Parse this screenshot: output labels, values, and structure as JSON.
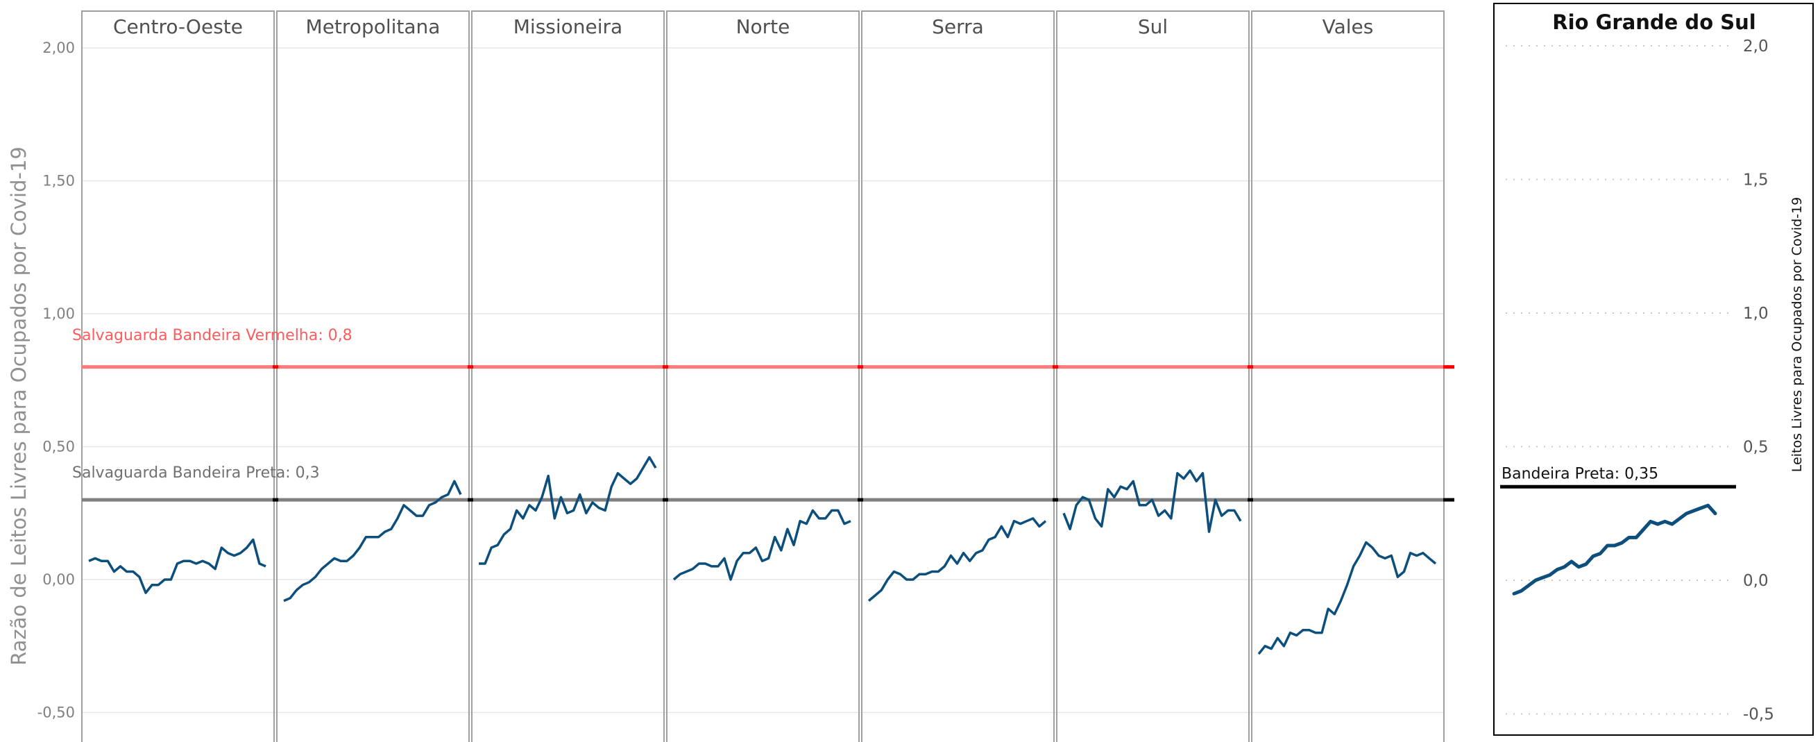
{
  "colors": {
    "series": "#0d4f7c",
    "red_line": "#ff7b7b",
    "red_marker": "#ff0000",
    "black_line": "#808080",
    "black_marker": "#000000",
    "grid": "#e6e6e6",
    "panel_border": "#a0a0a0"
  },
  "chart_data": [
    {
      "type": "line",
      "ylabel": "Razão de Leitos Livres para Ocupados por Covid-19",
      "ylim": [
        -0.5,
        2.0
      ],
      "yticks": [
        "2,00",
        "1,50",
        "1,00",
        "0,50",
        "0,00",
        "-0,50"
      ],
      "ytick_values": [
        2.0,
        1.5,
        1.0,
        0.5,
        0.0,
        -0.5
      ],
      "grid": true,
      "reference_lines": [
        {
          "label": "Salvaguarda Bandeira Vermelha: 0,8",
          "value": 0.8,
          "color": "#ff7b7b"
        },
        {
          "label": "Salvaguarda Bandeira Preta: 0,3",
          "value": 0.3,
          "color": "#808080"
        }
      ],
      "panels": [
        {
          "name": "Centro-Oeste",
          "values": [
            0.07,
            0.08,
            0.07,
            0.07,
            0.03,
            0.05,
            0.03,
            0.03,
            0.01,
            -0.05,
            -0.02,
            -0.02,
            0.0,
            0.0,
            0.06,
            0.07,
            0.07,
            0.06,
            0.07,
            0.06,
            0.04,
            0.12,
            0.1,
            0.09,
            0.1,
            0.12,
            0.15,
            0.06,
            0.05
          ]
        },
        {
          "name": "Metropolitana",
          "values": [
            -0.08,
            -0.07,
            -0.04,
            -0.02,
            -0.01,
            0.01,
            0.04,
            0.06,
            0.08,
            0.07,
            0.07,
            0.09,
            0.12,
            0.16,
            0.16,
            0.16,
            0.18,
            0.19,
            0.23,
            0.28,
            0.26,
            0.24,
            0.24,
            0.28,
            0.29,
            0.31,
            0.32,
            0.37,
            0.32
          ]
        },
        {
          "name": "Missioneira",
          "values": [
            0.06,
            0.06,
            0.12,
            0.13,
            0.17,
            0.19,
            0.26,
            0.23,
            0.28,
            0.26,
            0.31,
            0.39,
            0.23,
            0.31,
            0.25,
            0.26,
            0.32,
            0.25,
            0.29,
            0.27,
            0.26,
            0.35,
            0.4,
            0.38,
            0.36,
            0.38,
            0.42,
            0.46,
            0.42
          ]
        },
        {
          "name": "Norte",
          "values": [
            0.0,
            0.02,
            0.03,
            0.04,
            0.06,
            0.06,
            0.05,
            0.05,
            0.08,
            0.0,
            0.07,
            0.1,
            0.1,
            0.12,
            0.07,
            0.08,
            0.16,
            0.11,
            0.19,
            0.13,
            0.22,
            0.21,
            0.26,
            0.23,
            0.23,
            0.26,
            0.26,
            0.21,
            0.22
          ]
        },
        {
          "name": "Serra",
          "values": [
            -0.08,
            -0.06,
            -0.04,
            0.0,
            0.03,
            0.02,
            0.0,
            0.0,
            0.02,
            0.02,
            0.03,
            0.03,
            0.05,
            0.09,
            0.06,
            0.1,
            0.07,
            0.1,
            0.11,
            0.15,
            0.16,
            0.2,
            0.16,
            0.22,
            0.21,
            0.22,
            0.23,
            0.2,
            0.22
          ]
        },
        {
          "name": "Sul",
          "values": [
            0.25,
            0.19,
            0.28,
            0.31,
            0.3,
            0.23,
            0.2,
            0.34,
            0.31,
            0.35,
            0.34,
            0.37,
            0.28,
            0.28,
            0.3,
            0.24,
            0.26,
            0.23,
            0.4,
            0.38,
            0.41,
            0.37,
            0.4,
            0.18,
            0.3,
            0.24,
            0.26,
            0.26,
            0.22
          ]
        },
        {
          "name": "Vales",
          "values": [
            -0.28,
            -0.25,
            -0.26,
            -0.22,
            -0.25,
            -0.2,
            -0.21,
            -0.19,
            -0.19,
            -0.2,
            -0.2,
            -0.11,
            -0.13,
            -0.08,
            -0.02,
            0.05,
            0.09,
            0.14,
            0.12,
            0.09,
            0.08,
            0.09,
            0.01,
            0.03,
            0.1,
            0.09,
            0.1,
            0.08,
            0.06
          ]
        }
      ]
    },
    {
      "type": "line",
      "title": "Rio Grande do Sul",
      "ylabel": "Leitos Livres para Ocupados por Covid-19",
      "ylim": [
        -0.5,
        2.0
      ],
      "yticks": [
        "2,0",
        "1,5",
        "1,0",
        "0,5",
        "0,0",
        "-0,5"
      ],
      "ytick_values": [
        2.0,
        1.5,
        1.0,
        0.5,
        0.0,
        -0.5
      ],
      "grid": true,
      "reference_lines": [
        {
          "label": "Bandeira Preta: 0,35",
          "value": 0.35,
          "color": "#000000"
        }
      ],
      "values": [
        -0.05,
        -0.04,
        -0.02,
        0.0,
        0.01,
        0.02,
        0.04,
        0.05,
        0.07,
        0.05,
        0.06,
        0.09,
        0.1,
        0.13,
        0.13,
        0.14,
        0.16,
        0.16,
        0.19,
        0.22,
        0.21,
        0.22,
        0.21,
        0.23,
        0.25,
        0.26,
        0.27,
        0.28,
        0.25
      ]
    }
  ]
}
